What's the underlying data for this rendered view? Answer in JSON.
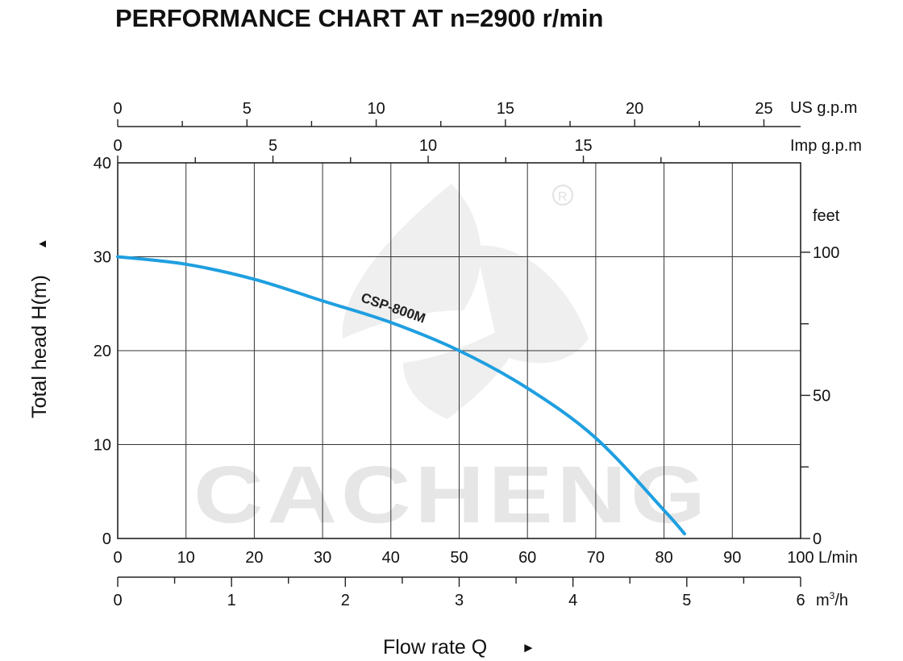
{
  "chart_data": {
    "type": "line",
    "title": "PERFORMANCE CHART AT n=2900 r/min",
    "ylabel": "Total head H(m)",
    "ylabel_arrow": "▲",
    "xlabel": "Flow rate  Q",
    "xlabel_arrow": "►",
    "xlim": [
      0,
      100
    ],
    "ylim": [
      0,
      40
    ],
    "grid": true,
    "primary_x_axis": {
      "unit": "L/min",
      "ticks": [
        0,
        10,
        20,
        30,
        40,
        50,
        60,
        70,
        80,
        90,
        100
      ]
    },
    "bottom_x_axis": {
      "unit_base": "m",
      "unit_sup": "3",
      "unit_suffix": "/h",
      "ticks": [
        0,
        1,
        2,
        3,
        4,
        5,
        6
      ],
      "minor_ticks": [
        0.5,
        1.5,
        2.5,
        3.5,
        4.5,
        5.5
      ],
      "lpm_per_unit": 16.6667
    },
    "top_axis_usgpm": {
      "unit": "US g.p.m",
      "ticks": [
        0,
        5,
        10,
        15,
        20,
        25
      ],
      "minor_ticks": [
        2.5,
        7.5,
        12.5,
        17.5,
        22.5
      ],
      "lpm_per_unit": 3.785
    },
    "top_axis_impgpm": {
      "unit": "Imp g.p.m",
      "ticks": [
        0,
        5,
        10,
        15
      ],
      "minor_ticks": [
        2.5,
        7.5,
        12.5,
        17.5
      ],
      "lpm_per_unit": 4.546
    },
    "primary_y_axis": {
      "unit": "",
      "ticks": [
        0,
        10,
        20,
        30,
        40
      ]
    },
    "right_y_axis": {
      "unit": "feet",
      "labeled_ticks": [
        0,
        50,
        100
      ],
      "minor_ticks": [
        25,
        75
      ],
      "m_per_unit": 0.3048
    },
    "series": [
      {
        "name": "CSP-800M",
        "color": "#1f9fe0",
        "x": [
          0,
          10,
          20,
          30,
          40,
          50,
          60,
          70,
          80,
          83
        ],
        "y": [
          30,
          29.2,
          27.6,
          25.3,
          23,
          20,
          16,
          10.7,
          3,
          0.5
        ]
      }
    ],
    "watermark": "CACHENG"
  }
}
